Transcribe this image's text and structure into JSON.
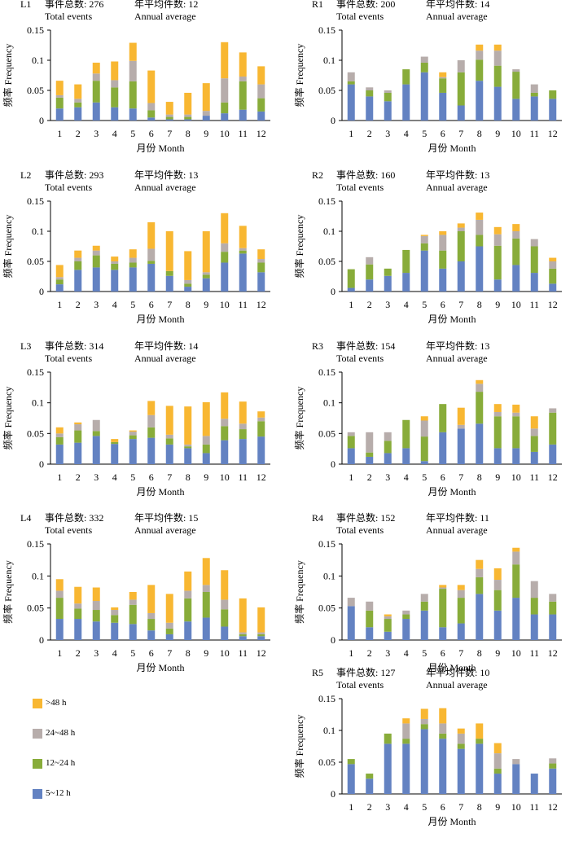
{
  "colors": {
    "gt48": "#F8B732",
    "h24_48": "#B7ADAB",
    "h12_24": "#88AC3A",
    "h5_12": "#6382C2",
    "axis": "#000000"
  },
  "legend": {
    "items": [
      {
        "key": "gt48",
        "label": ">48 h"
      },
      {
        "key": "h24_48",
        "label": "24~48 h"
      },
      {
        "key": "h12_24",
        "label": "12~24 h"
      },
      {
        "key": "h5_12",
        "label": "5~12 h"
      }
    ]
  },
  "chart_data": [
    {
      "type": "bar",
      "stacked": true,
      "id": "L1",
      "total_label": "事件总数: 276",
      "annual_label": "年平均件数: 12",
      "total_en": "Total events",
      "annual_en": "Annual average",
      "xlabel": "月份 Month",
      "ylabel": "频率 Frequency",
      "ylim": [
        0,
        0.15
      ],
      "yticks": [
        "0",
        "0.05",
        "0.1",
        "0.15"
      ],
      "categories": [
        "1",
        "2",
        "3",
        "4",
        "5",
        "6",
        "7",
        "8",
        "9",
        "10",
        "11",
        "12"
      ],
      "series": [
        {
          "key": "h5_12",
          "values": [
            0.02,
            0.022,
            0.03,
            0.022,
            0.02,
            0.005,
            0.002,
            0.002,
            0.008,
            0.012,
            0.018,
            0.015
          ]
        },
        {
          "key": "h12_24",
          "values": [
            0.018,
            0.008,
            0.036,
            0.033,
            0.045,
            0.012,
            0.004,
            0.004,
            0.0,
            0.018,
            0.047,
            0.022
          ]
        },
        {
          "key": "h24_48",
          "values": [
            0.004,
            0.006,
            0.012,
            0.012,
            0.034,
            0.012,
            0.004,
            0.004,
            0.008,
            0.04,
            0.008,
            0.023
          ]
        },
        {
          "key": "gt48",
          "values": [
            0.024,
            0.024,
            0.018,
            0.031,
            0.03,
            0.054,
            0.021,
            0.036,
            0.046,
            0.06,
            0.04,
            0.03
          ]
        }
      ]
    },
    {
      "type": "bar",
      "stacked": true,
      "id": "R1",
      "total_label": "事件总数: 200",
      "annual_label": "年平均件数: 14",
      "total_en": "Total events",
      "annual_en": "Annual average",
      "xlabel": "月份 Month",
      "ylabel": "频率 Frequency",
      "ylim": [
        0,
        0.15
      ],
      "yticks": [
        "0",
        "0.05",
        "0.1",
        "0.15"
      ],
      "categories": [
        "1",
        "2",
        "3",
        "4",
        "5",
        "6",
        "7",
        "8",
        "9",
        "10",
        "11",
        "12"
      ],
      "series": [
        {
          "key": "h5_12",
          "values": [
            0.06,
            0.04,
            0.032,
            0.06,
            0.08,
            0.046,
            0.025,
            0.066,
            0.056,
            0.036,
            0.04,
            0.036
          ]
        },
        {
          "key": "h12_24",
          "values": [
            0.005,
            0.01,
            0.014,
            0.025,
            0.016,
            0.024,
            0.055,
            0.035,
            0.035,
            0.045,
            0.006,
            0.014
          ]
        },
        {
          "key": "h24_48",
          "values": [
            0.015,
            0.005,
            0.004,
            0.0,
            0.01,
            0.002,
            0.02,
            0.015,
            0.025,
            0.004,
            0.014,
            0.0
          ]
        },
        {
          "key": "gt48",
          "values": [
            0.0,
            0.0,
            0.0,
            0.0,
            0.0,
            0.008,
            0.0,
            0.01,
            0.01,
            0.0,
            0.0,
            0.0
          ]
        }
      ]
    },
    {
      "type": "bar",
      "stacked": true,
      "id": "L2",
      "total_label": "事件总数: 293",
      "annual_label": "年平均件数: 13",
      "total_en": "Total events",
      "annual_en": "Annual average",
      "xlabel": "月份 Month",
      "ylabel": "频率 Frequency",
      "ylim": [
        0,
        0.15
      ],
      "yticks": [
        "0",
        "0.05",
        "0.1",
        "0.15"
      ],
      "categories": [
        "1",
        "2",
        "3",
        "4",
        "5",
        "6",
        "7",
        "8",
        "9",
        "10",
        "11",
        "12"
      ],
      "series": [
        {
          "key": "h5_12",
          "values": [
            0.012,
            0.036,
            0.04,
            0.036,
            0.04,
            0.046,
            0.026,
            0.008,
            0.022,
            0.048,
            0.063,
            0.032
          ]
        },
        {
          "key": "h12_24",
          "values": [
            0.008,
            0.014,
            0.02,
            0.01,
            0.008,
            0.005,
            0.008,
            0.005,
            0.006,
            0.018,
            0.005,
            0.016
          ]
        },
        {
          "key": "h24_48",
          "values": [
            0.004,
            0.006,
            0.008,
            0.004,
            0.008,
            0.02,
            0.0,
            0.006,
            0.004,
            0.014,
            0.004,
            0.006
          ]
        },
        {
          "key": "gt48",
          "values": [
            0.02,
            0.012,
            0.008,
            0.008,
            0.014,
            0.044,
            0.066,
            0.048,
            0.068,
            0.05,
            0.037,
            0.016
          ]
        }
      ]
    },
    {
      "type": "bar",
      "stacked": true,
      "id": "R2",
      "total_label": "事件总数: 160",
      "annual_label": "年平均件数: 13",
      "total_en": "Total events",
      "annual_en": "Annual average",
      "xlabel": "月份 Month",
      "ylabel": "频率 Frequency",
      "ylim": [
        0,
        0.15
      ],
      "yticks": [
        "0",
        "0.05",
        "0.1",
        "0.15"
      ],
      "categories": [
        "1",
        "2",
        "3",
        "4",
        "5",
        "6",
        "7",
        "8",
        "9",
        "10",
        "11",
        "12"
      ],
      "series": [
        {
          "key": "h5_12",
          "values": [
            0.006,
            0.02,
            0.026,
            0.031,
            0.068,
            0.038,
            0.05,
            0.075,
            0.02,
            0.044,
            0.031,
            0.013
          ]
        },
        {
          "key": "h12_24",
          "values": [
            0.031,
            0.025,
            0.012,
            0.038,
            0.012,
            0.03,
            0.05,
            0.019,
            0.056,
            0.044,
            0.044,
            0.025
          ]
        },
        {
          "key": "h24_48",
          "values": [
            0.0,
            0.012,
            0.0,
            0.0,
            0.012,
            0.026,
            0.006,
            0.025,
            0.019,
            0.012,
            0.012,
            0.012
          ]
        },
        {
          "key": "gt48",
          "values": [
            0.0,
            0.0,
            0.0,
            0.0,
            0.002,
            0.006,
            0.007,
            0.012,
            0.012,
            0.012,
            0.0,
            0.006
          ]
        }
      ]
    },
    {
      "type": "bar",
      "stacked": true,
      "id": "L3",
      "total_label": "事件总数: 314",
      "annual_label": "年平均件数: 14",
      "total_en": "Total events",
      "annual_en": "Annual average",
      "xlabel": "月份 Month",
      "ylabel": "频率 Frequency",
      "ylim": [
        0,
        0.15
      ],
      "yticks": [
        "0",
        "0.05",
        "0.1",
        "0.15"
      ],
      "categories": [
        "1",
        "2",
        "3",
        "4",
        "5",
        "6",
        "7",
        "8",
        "9",
        "10",
        "11",
        "12"
      ],
      "series": [
        {
          "key": "h5_12",
          "values": [
            0.032,
            0.035,
            0.046,
            0.033,
            0.041,
            0.043,
            0.032,
            0.026,
            0.018,
            0.039,
            0.041,
            0.045
          ]
        },
        {
          "key": "h12_24",
          "values": [
            0.012,
            0.02,
            0.008,
            0.003,
            0.006,
            0.017,
            0.01,
            0.003,
            0.014,
            0.023,
            0.016,
            0.025
          ]
        },
        {
          "key": "h24_48",
          "values": [
            0.006,
            0.01,
            0.018,
            0.0,
            0.006,
            0.02,
            0.006,
            0.003,
            0.014,
            0.012,
            0.009,
            0.006
          ]
        },
        {
          "key": "gt48",
          "values": [
            0.01,
            0.003,
            0.0,
            0.005,
            0.002,
            0.023,
            0.047,
            0.062,
            0.055,
            0.043,
            0.036,
            0.01
          ]
        }
      ]
    },
    {
      "type": "bar",
      "stacked": true,
      "id": "R3",
      "total_label": "事件总数: 154",
      "annual_label": "年平均件数: 13",
      "total_en": "Total events",
      "annual_en": "Annual average",
      "xlabel": "月份 Month",
      "ylabel": "频率 Frequency",
      "ylim": [
        0,
        0.15
      ],
      "yticks": [
        "0",
        "0.05",
        "0.1",
        "0.15"
      ],
      "categories": [
        "1",
        "2",
        "3",
        "4",
        "5",
        "6",
        "7",
        "8",
        "9",
        "10",
        "11",
        "12"
      ],
      "series": [
        {
          "key": "h5_12",
          "values": [
            0.026,
            0.012,
            0.018,
            0.026,
            0.005,
            0.052,
            0.058,
            0.066,
            0.026,
            0.026,
            0.02,
            0.032
          ]
        },
        {
          "key": "h12_24",
          "values": [
            0.02,
            0.007,
            0.02,
            0.046,
            0.04,
            0.046,
            0.0,
            0.052,
            0.052,
            0.052,
            0.026,
            0.052
          ]
        },
        {
          "key": "h24_48",
          "values": [
            0.006,
            0.033,
            0.014,
            0.0,
            0.026,
            0.0,
            0.006,
            0.013,
            0.007,
            0.006,
            0.012,
            0.007
          ]
        },
        {
          "key": "gt48",
          "values": [
            0.0,
            0.0,
            0.0,
            0.0,
            0.007,
            0.0,
            0.028,
            0.006,
            0.013,
            0.013,
            0.02,
            0.0
          ]
        }
      ]
    },
    {
      "type": "bar",
      "stacked": true,
      "id": "L4",
      "total_label": "事件总数: 332",
      "annual_label": "年平均件数: 15",
      "total_en": "Total events",
      "annual_en": "Annual average",
      "xlabel": "月份 Month",
      "ylabel": "频率 Frequency",
      "ylim": [
        0,
        0.15
      ],
      "yticks": [
        "0",
        "0.05",
        "0.1",
        "0.15"
      ],
      "categories": [
        "1",
        "2",
        "3",
        "4",
        "5",
        "6",
        "7",
        "8",
        "9",
        "10",
        "11",
        "12"
      ],
      "series": [
        {
          "key": "h5_12",
          "values": [
            0.033,
            0.033,
            0.029,
            0.027,
            0.025,
            0.015,
            0.009,
            0.029,
            0.035,
            0.021,
            0.006,
            0.006
          ]
        },
        {
          "key": "h12_24",
          "values": [
            0.033,
            0.016,
            0.018,
            0.012,
            0.03,
            0.018,
            0.009,
            0.036,
            0.04,
            0.027,
            0.003,
            0.003
          ]
        },
        {
          "key": "h24_48",
          "values": [
            0.011,
            0.008,
            0.014,
            0.008,
            0.008,
            0.009,
            0.009,
            0.012,
            0.011,
            0.015,
            0.003,
            0.003
          ]
        },
        {
          "key": "gt48",
          "values": [
            0.018,
            0.026,
            0.021,
            0.004,
            0.012,
            0.044,
            0.045,
            0.03,
            0.042,
            0.046,
            0.053,
            0.039
          ]
        }
      ]
    },
    {
      "type": "bar",
      "stacked": true,
      "id": "R4",
      "total_label": "事件总数: 152",
      "annual_label": "年平均件数: 11",
      "total_en": "Total events",
      "annual_en": "Annual average",
      "xlabel": "月份 Month",
      "ylabel": "频率 Frequency",
      "ylim": [
        0,
        0.15
      ],
      "yticks": [
        "0",
        "0.05",
        "0.1",
        "0.15"
      ],
      "categories": [
        "1",
        "2",
        "3",
        "4",
        "5",
        "6",
        "7",
        "8",
        "9",
        "10",
        "11",
        "12"
      ],
      "series": [
        {
          "key": "h5_12",
          "values": [
            0.053,
            0.02,
            0.013,
            0.033,
            0.046,
            0.02,
            0.026,
            0.072,
            0.046,
            0.066,
            0.04,
            0.04
          ]
        },
        {
          "key": "h12_24",
          "values": [
            0.0,
            0.026,
            0.02,
            0.007,
            0.014,
            0.06,
            0.04,
            0.026,
            0.032,
            0.052,
            0.026,
            0.02
          ]
        },
        {
          "key": "h24_48",
          "values": [
            0.013,
            0.014,
            0.004,
            0.006,
            0.012,
            0.002,
            0.012,
            0.013,
            0.016,
            0.02,
            0.026,
            0.012
          ]
        },
        {
          "key": "gt48",
          "values": [
            0.0,
            0.0,
            0.003,
            0.0,
            0.0,
            0.004,
            0.008,
            0.014,
            0.018,
            0.006,
            0.0,
            0.0
          ]
        }
      ]
    },
    {
      "type": "bar",
      "stacked": true,
      "id": "R5",
      "total_label": "事件总数: 127",
      "annual_label": "年平均件数: 10",
      "total_en": "Total events",
      "annual_en": "Annual average",
      "xlabel": "月份 Month",
      "ylabel": "频率 Frequency",
      "ylim": [
        0,
        0.15
      ],
      "yticks": [
        "0",
        "0.05",
        "0.1",
        "0.15"
      ],
      "categories": [
        "1",
        "2",
        "3",
        "4",
        "5",
        "6",
        "7",
        "8",
        "9",
        "10",
        "11",
        "12"
      ],
      "series": [
        {
          "key": "h5_12",
          "values": [
            0.047,
            0.024,
            0.079,
            0.079,
            0.102,
            0.087,
            0.071,
            0.079,
            0.032,
            0.047,
            0.032,
            0.04
          ]
        },
        {
          "key": "h12_24",
          "values": [
            0.008,
            0.008,
            0.016,
            0.008,
            0.008,
            0.008,
            0.008,
            0.008,
            0.008,
            0.0,
            0.0,
            0.008
          ]
        },
        {
          "key": "h24_48",
          "values": [
            0.0,
            0.0,
            0.0,
            0.024,
            0.008,
            0.016,
            0.016,
            0.0,
            0.024,
            0.008,
            0.0,
            0.008
          ]
        },
        {
          "key": "gt48",
          "values": [
            0.0,
            0.0,
            0.0,
            0.008,
            0.016,
            0.024,
            0.008,
            0.024,
            0.016,
            0.0,
            0.0,
            0.0
          ]
        }
      ]
    }
  ]
}
